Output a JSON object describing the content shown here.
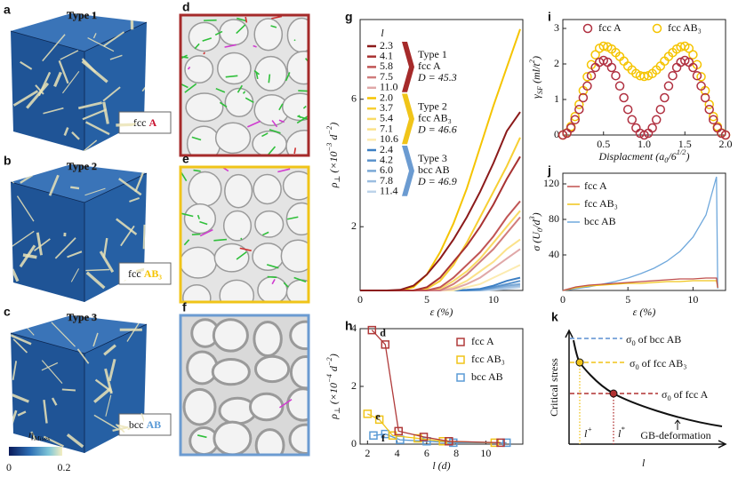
{
  "image_panels": [
    {
      "letter": "a",
      "title": "Type 1",
      "title_color": "#c8102e",
      "label": "fcc",
      "label_highlight": "A",
      "highlight_color": "#c8102e"
    },
    {
      "letter": "b",
      "title": "Type 2",
      "title_color": "#f5c400",
      "label": "fcc",
      "label_highlight": "AB₃",
      "highlight_color": "#f5c400"
    },
    {
      "letter": "c",
      "title": "Type 3",
      "title_color": "#2e7bc4",
      "label": "bcc",
      "label_highlight": "AB",
      "highlight_color": "#5a9ad6"
    }
  ],
  "colorbar": {
    "symbol": "η",
    "subscript": "Mises",
    "min": 0,
    "max": 0.2
  },
  "micrograph_panels": [
    {
      "letter": "d",
      "border": "#a52a2a"
    },
    {
      "letter": "e",
      "border": "#f0c419"
    },
    {
      "letter": "f",
      "border": "#6b9bd1"
    }
  ],
  "chart_data": [
    {
      "type": "line",
      "panel": "g",
      "legend_title": "l",
      "xlabel": "ε (%)",
      "ylabel": [
        "ρ",
        {
          "sub": "⊥"
        },
        " (×10",
        {
          "sup": "−3"
        },
        " d",
        {
          "sup": "−2"
        },
        ")"
      ],
      "xlim": [
        0,
        12.2
      ],
      "xticks": [
        0,
        5,
        10
      ],
      "ylim": [
        0,
        8.5
      ],
      "yticks": [
        2,
        6
      ],
      "x": [
        0,
        1,
        2,
        3,
        4,
        5,
        6,
        7,
        8,
        9,
        10,
        11,
        12
      ],
      "groups": [
        {
          "labels": [
            "Type 1",
            "fcc A",
            "D = 45.3"
          ],
          "color": "#a52a2a",
          "series": [
            {
              "name": "2.3",
              "color": "#8b1a1a",
              "values": [
                0,
                0,
                0,
                0.02,
                0.15,
                0.5,
                1.0,
                1.6,
                2.3,
                3.1,
                4.0,
                5.0,
                5.6
              ]
            },
            {
              "name": "4.1",
              "color": "#a83232",
              "values": [
                0,
                0,
                0,
                0,
                0,
                0.1,
                0.4,
                0.9,
                1.4,
                2.0,
                2.7,
                3.5,
                4.2
              ]
            },
            {
              "name": "5.8",
              "color": "#c05555",
              "values": [
                0,
                0,
                0,
                0,
                0,
                0,
                0.1,
                0.4,
                0.8,
                1.2,
                1.7,
                2.3,
                2.8
              ]
            },
            {
              "name": "7.5",
              "color": "#d07c7c",
              "values": [
                0,
                0,
                0,
                0,
                0,
                0,
                0,
                0.2,
                0.5,
                0.9,
                1.3,
                1.8,
                2.3
              ]
            },
            {
              "name": "11.0",
              "color": "#e0a8a8",
              "values": [
                0,
                0,
                0,
                0,
                0,
                0,
                0,
                0.05,
                0.2,
                0.4,
                0.7,
                1.0,
                1.3
              ]
            }
          ]
        },
        {
          "labels": [
            "Type 2",
            "fcc AB₃",
            "D = 46.6"
          ],
          "color": "#f0c419",
          "series": [
            {
              "name": "2.0",
              "color": "#f5c400",
              "values": [
                0,
                0,
                0,
                0,
                0.1,
                0.5,
                1.2,
                2.1,
                3.2,
                4.5,
                5.8,
                7.0,
                8.2
              ]
            },
            {
              "name": "3.7",
              "color": "#f7cf33",
              "values": [
                0,
                0,
                0,
                0,
                0,
                0.05,
                0.3,
                0.8,
                1.5,
                2.3,
                3.1,
                3.9,
                4.8
              ]
            },
            {
              "name": "5.4",
              "color": "#f9db66",
              "values": [
                0,
                0,
                0,
                0,
                0,
                0,
                0.05,
                0.3,
                0.6,
                1.0,
                1.5,
                2.0,
                2.5
              ]
            },
            {
              "name": "7.1",
              "color": "#fbe28a",
              "values": [
                0,
                0,
                0,
                0,
                0,
                0,
                0,
                0.1,
                0.3,
                0.6,
                0.9,
                1.3,
                1.6
              ]
            },
            {
              "name": "10.6",
              "color": "#fcebb0",
              "values": [
                0,
                0,
                0,
                0,
                0,
                0,
                0,
                0,
                0.1,
                0.2,
                0.4,
                0.6,
                0.8
              ]
            }
          ]
        },
        {
          "labels": [
            "Type 3",
            "bcc AB",
            "D = 46.9"
          ],
          "color": "#6b9bd1",
          "series": [
            {
              "name": "2.4",
              "color": "#3d7fc4",
              "values": [
                0,
                0,
                0,
                0,
                0,
                0,
                0,
                0,
                0.02,
                0.05,
                0.15,
                0.3,
                0.4
              ]
            },
            {
              "name": "4.2",
              "color": "#5b93cc",
              "values": [
                0,
                0,
                0,
                0,
                0,
                0,
                0,
                0,
                0,
                0.03,
                0.1,
                0.2,
                0.3
              ]
            },
            {
              "name": "6.0",
              "color": "#7aa8d6",
              "values": [
                0,
                0,
                0,
                0,
                0,
                0,
                0,
                0,
                0,
                0.02,
                0.08,
                0.15,
                0.2
              ]
            },
            {
              "name": "7.8",
              "color": "#9bbde0",
              "values": [
                0,
                0,
                0,
                0,
                0,
                0,
                0,
                0,
                0,
                0,
                0.05,
                0.1,
                0.15
              ]
            },
            {
              "name": "11.4",
              "color": "#bdd3ea",
              "values": [
                0,
                0,
                0,
                0,
                0,
                0,
                0,
                0,
                0,
                0,
                0.02,
                0.05,
                0.1
              ]
            }
          ]
        }
      ]
    },
    {
      "type": "line",
      "panel": "h",
      "xlabel": "l (d)",
      "ylabel": [
        "ρ",
        {
          "sub": "⊥"
        },
        " (×10",
        {
          "sup": "−4"
        },
        " d",
        {
          "sup": "−2"
        },
        ")"
      ],
      "xlim": [
        1.5,
        12.5
      ],
      "xticks": [
        2,
        4,
        6,
        8,
        10
      ],
      "ylim": [
        0,
        4
      ],
      "yticks": [
        0,
        2,
        4
      ],
      "legend": "upper right",
      "series": [
        {
          "name": "fcc A",
          "color": "#b03a3a",
          "marker": "square",
          "annotation": "d",
          "x": [
            2.3,
            3.2,
            4.1,
            5.8,
            7.5,
            11.0
          ],
          "values": [
            3.95,
            3.45,
            0.45,
            0.25,
            0.1,
            0.05
          ]
        },
        {
          "name": "fcc AB₃",
          "color": "#f0c419",
          "marker": "square",
          "annotation": "e",
          "x": [
            2.0,
            2.8,
            3.7,
            5.4,
            7.1,
            10.6
          ],
          "values": [
            1.05,
            0.85,
            0.3,
            0.2,
            0.1,
            0.05
          ]
        },
        {
          "name": "bcc AB",
          "color": "#5b9bd5",
          "marker": "square",
          "annotation": "f",
          "x": [
            2.4,
            3.2,
            4.2,
            6.0,
            7.8,
            11.4
          ],
          "values": [
            0.3,
            0.35,
            0.15,
            0.1,
            0.05,
            0.05
          ]
        }
      ]
    },
    {
      "type": "scatter",
      "panel": "i",
      "xlabel": [
        "Displacment (a",
        {
          "sub": "0"
        },
        "/6",
        {
          "sup": "1/2"
        },
        ")"
      ],
      "ylabel": [
        "γ",
        {
          "sub": "SF"
        },
        " (ml/t",
        {
          "sup": "2"
        },
        ")"
      ],
      "xlim": [
        0,
        2
      ],
      "xticks": [
        0.5,
        {
          "value": 1,
          "label": "1.0"
        },
        1.5,
        {
          "value": 2,
          "label": "2.0"
        }
      ],
      "ylim": [
        0,
        3.25
      ],
      "yticks": [
        0,
        1,
        2,
        3
      ],
      "legend": "upper center",
      "x": [
        0,
        0.05,
        0.1,
        0.15,
        0.2,
        0.25,
        0.3,
        0.35,
        0.4,
        0.45,
        0.5,
        0.55,
        0.6,
        0.65,
        0.7,
        0.75,
        0.8,
        0.85,
        0.9,
        0.95,
        1.0,
        1.05,
        1.1,
        1.15,
        1.2,
        1.25,
        1.3,
        1.35,
        1.4,
        1.45,
        1.5,
        1.55,
        1.6,
        1.65,
        1.7,
        1.75,
        1.8,
        1.85,
        1.9,
        1.95,
        2.0
      ],
      "series": [
        {
          "name": "fcc A",
          "color": "#b03040",
          "marker": "circle",
          "values": [
            0,
            0.05,
            0.2,
            0.43,
            0.72,
            1.05,
            1.38,
            1.67,
            1.9,
            2.05,
            2.1,
            2.05,
            1.9,
            1.67,
            1.38,
            1.05,
            0.72,
            0.43,
            0.2,
            0.05,
            0,
            0.05,
            0.2,
            0.43,
            0.72,
            1.05,
            1.38,
            1.67,
            1.9,
            2.05,
            2.1,
            2.05,
            1.9,
            1.67,
            1.38,
            1.05,
            0.72,
            0.43,
            0.2,
            0.05,
            0
          ]
        },
        {
          "name": "fcc AB₃",
          "color": "#f5c400",
          "marker": "circle",
          "values": [
            0,
            0.06,
            0.24,
            0.52,
            0.86,
            1.25,
            1.64,
            1.98,
            2.26,
            2.44,
            2.5,
            2.48,
            2.42,
            2.32,
            2.21,
            2.08,
            1.94,
            1.83,
            1.73,
            1.67,
            1.65,
            1.67,
            1.73,
            1.83,
            1.94,
            2.08,
            2.21,
            2.32,
            2.42,
            2.48,
            2.5,
            2.44,
            2.26,
            1.98,
            1.64,
            1.25,
            0.86,
            0.52,
            0.24,
            0.06,
            0
          ]
        }
      ]
    },
    {
      "type": "line",
      "panel": "j",
      "xlabel": "ε (%)",
      "ylabel": [
        "σ (U",
        {
          "sub": "0"
        },
        "/d",
        {
          "sup": "3"
        },
        ")"
      ],
      "xlim": [
        0,
        12.5
      ],
      "xticks": [
        0,
        5,
        10
      ],
      "ylim": [
        0,
        132
      ],
      "yticks": [
        40,
        80,
        120
      ],
      "legend": "upper left",
      "x": [
        0,
        1,
        2,
        3,
        4,
        5,
        6,
        7,
        8,
        9,
        10,
        11,
        11.8,
        11.9
      ],
      "series": [
        {
          "name": "fcc A",
          "color": "#c0504d",
          "values": [
            0,
            4,
            6,
            7,
            8,
            9,
            10,
            11,
            12,
            13,
            13,
            14,
            14,
            3
          ]
        },
        {
          "name": "fcc AB₃",
          "color": "#f0c419",
          "values": [
            0,
            3,
            5,
            6,
            7,
            8,
            8,
            9,
            10,
            10,
            11,
            11,
            11,
            3
          ]
        },
        {
          "name": "bcc AB",
          "color": "#6fa8dc",
          "values": [
            0,
            2,
            4,
            7,
            10,
            14,
            19,
            25,
            33,
            44,
            60,
            85,
            128,
            2
          ]
        }
      ]
    }
  ],
  "schematic": {
    "letter": "k",
    "ylabel": "Critical stress",
    "xlabel": "l",
    "levels": [
      {
        "label": [
          "σ",
          {
            "sub": "0"
          },
          " of bcc AB"
        ],
        "color": "#5b8fd0"
      },
      {
        "label": [
          "σ",
          {
            "sub": "0"
          },
          " of fcc AB₃"
        ],
        "color": "#f0c419"
      },
      {
        "label": [
          "σ",
          {
            "sub": "0"
          },
          " of fcc A"
        ],
        "color": "#b03030"
      }
    ],
    "markers": [
      {
        "label": [
          "l",
          {
            "sup": "+"
          }
        ],
        "color": "#f0c419"
      },
      {
        "label": [
          "l",
          {
            "sup": "*"
          }
        ],
        "color": "#b03030"
      }
    ],
    "annotation": "GB-deformation"
  }
}
